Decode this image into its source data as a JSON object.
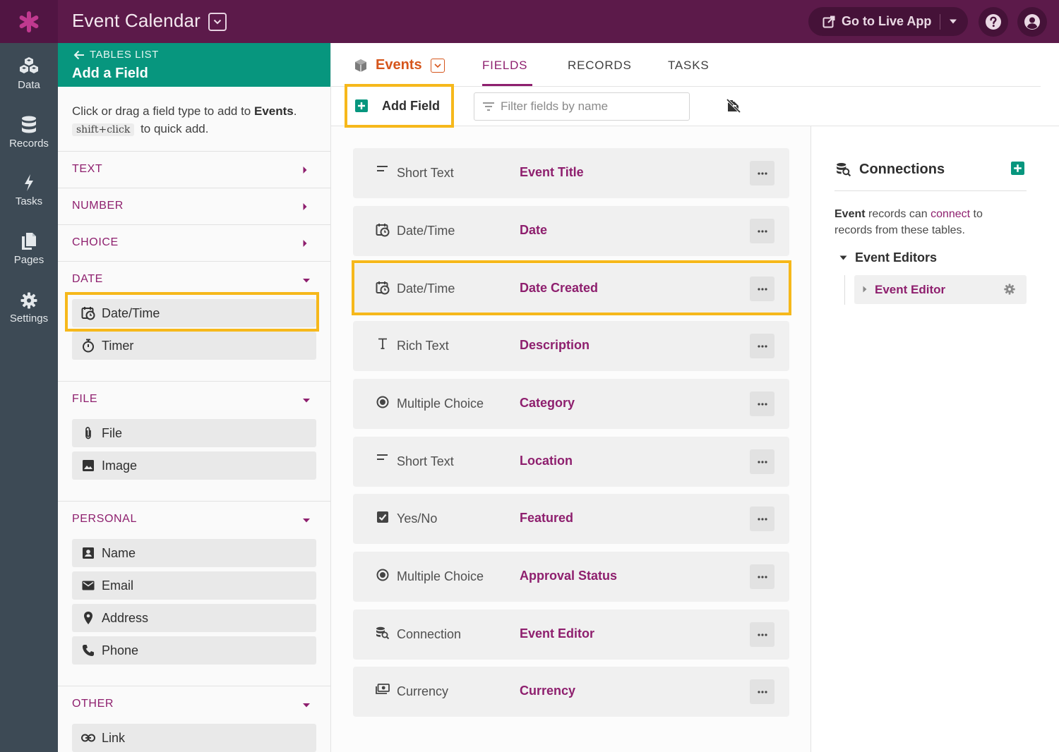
{
  "app": {
    "title": "Event Calendar",
    "live_app_label": "Go to Live App"
  },
  "colors": {
    "topbar": "#5c1a4a",
    "leftnav": "#3d4a55",
    "panel_header": "#07967e",
    "accent": "#8e1f6e",
    "table_name": "#d6561c",
    "highlight": "#f6b81b"
  },
  "nav": [
    {
      "label": "Data",
      "icon": "data-icon"
    },
    {
      "label": "Records",
      "icon": "records-icon"
    },
    {
      "label": "Tasks",
      "icon": "tasks-icon"
    },
    {
      "label": "Pages",
      "icon": "pages-icon"
    },
    {
      "label": "Settings",
      "icon": "settings-icon"
    }
  ],
  "panel": {
    "back_label": "TABLES LIST",
    "title": "Add a Field",
    "intro_prefix": "Click or drag a field type to add to ",
    "intro_table": "Events",
    "intro_suffix": ".",
    "kbd": "shift+click",
    "intro_tail": "to quick add.",
    "categories": {
      "text": "TEXT",
      "number": "NUMBER",
      "choice": "CHOICE",
      "date": "DATE",
      "file": "FILE",
      "personal": "PERSONAL",
      "other": "OTHER"
    },
    "date_types": [
      "Date/Time",
      "Timer"
    ],
    "file_types": [
      "File",
      "Image"
    ],
    "personal_types": [
      "Name",
      "Email",
      "Address",
      "Phone"
    ],
    "other_types": [
      "Link"
    ]
  },
  "main": {
    "table_name": "Events",
    "tabs": [
      "FIELDS",
      "RECORDS",
      "TASKS"
    ],
    "active_tab": "FIELDS",
    "add_field_label": "Add Field",
    "filter_placeholder": "Filter fields by name",
    "fields": [
      {
        "type": "Short Text",
        "name": "Event Title",
        "icon": "short-text-icon"
      },
      {
        "type": "Date/Time",
        "name": "Date",
        "icon": "calendar-clock-icon"
      },
      {
        "type": "Date/Time",
        "name": "Date Created",
        "icon": "calendar-clock-icon"
      },
      {
        "type": "Rich Text",
        "name": "Description",
        "icon": "rich-text-icon"
      },
      {
        "type": "Multiple Choice",
        "name": "Category",
        "icon": "radio-icon"
      },
      {
        "type": "Short Text",
        "name": "Location",
        "icon": "short-text-icon"
      },
      {
        "type": "Yes/No",
        "name": "Featured",
        "icon": "checkbox-icon"
      },
      {
        "type": "Multiple Choice",
        "name": "Approval Status",
        "icon": "radio-icon"
      },
      {
        "type": "Connection",
        "name": "Event Editor",
        "icon": "connection-icon"
      },
      {
        "type": "Currency",
        "name": "Currency",
        "icon": "currency-icon"
      }
    ]
  },
  "connections": {
    "title": "Connections",
    "desc_table": "Event",
    "desc_mid": " records can ",
    "desc_link": "connect",
    "desc_end": " to records from these tables.",
    "group_label": "Event Editors",
    "item_label": "Event Editor"
  }
}
